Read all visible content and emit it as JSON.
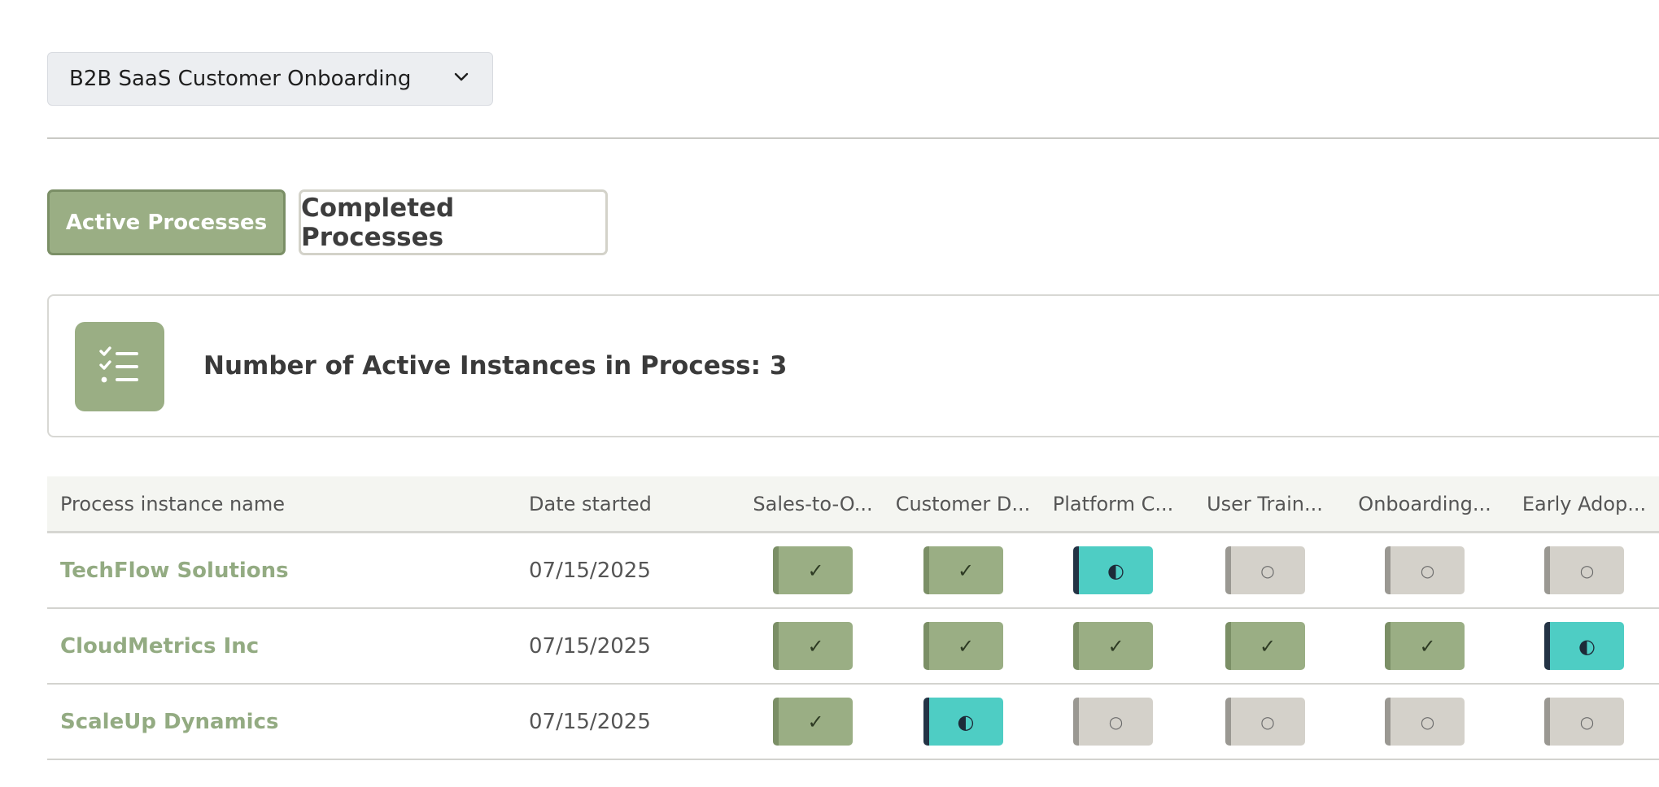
{
  "process_selector": {
    "selected": "B2B SaaS Customer Onboarding",
    "icon": "chevron-down-icon"
  },
  "tabs": {
    "active": "Active Processes",
    "completed": "Completed Processes"
  },
  "summary": {
    "icon": "checklist-icon",
    "text": "Number of Active Instances in Process: 3"
  },
  "table": {
    "headers": {
      "name": "Process instance name",
      "date": "Date started",
      "steps": [
        "Sales-to-O...",
        "Customer D...",
        "Platform C...",
        "User Train...",
        "Onboarding...",
        "Early Adop..."
      ]
    },
    "status_symbols": {
      "done": "✓",
      "in_progress": "◐",
      "pending": "○"
    },
    "rows": [
      {
        "name": "TechFlow Solutions",
        "date": "07/15/2025",
        "steps": [
          "done",
          "done",
          "in_progress",
          "pending",
          "pending",
          "pending"
        ]
      },
      {
        "name": "CloudMetrics Inc",
        "date": "07/15/2025",
        "steps": [
          "done",
          "done",
          "done",
          "done",
          "done",
          "in_progress"
        ]
      },
      {
        "name": "ScaleUp Dynamics",
        "date": "07/15/2025",
        "steps": [
          "done",
          "in_progress",
          "pending",
          "pending",
          "pending",
          "pending"
        ]
      }
    ]
  },
  "colors": {
    "accent": "#9aae84",
    "accent_dark": "#7b8f66",
    "in_progress": "#4ecdc4",
    "pending": "#d4d1ca"
  }
}
